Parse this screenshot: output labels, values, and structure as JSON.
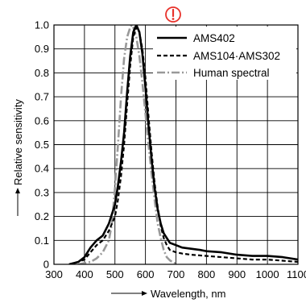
{
  "chart_data": {
    "type": "line",
    "xlabel": "Wavelength, nm",
    "ylabel": "Relative sensitivity",
    "xlim": [
      300,
      1100
    ],
    "ylim": [
      0,
      1.0
    ],
    "x_ticks": [
      "300",
      "400",
      "500",
      "600",
      "700",
      "800",
      "900",
      "1000",
      "1100"
    ],
    "y_ticks": [
      "0",
      "0.1",
      "0.2",
      "0.3",
      "0.4",
      "0.5",
      "0.6",
      "0.7",
      "0.8",
      "0.9",
      "1.0"
    ],
    "grid": true,
    "legend_position": "top-right",
    "warning_icon": "exclamation-circle-icon",
    "colors": {
      "warning": "#e8322b",
      "grid": "#000000",
      "human": "#999999"
    },
    "series": [
      {
        "name": "AMS402",
        "style": "solid",
        "color": "#000000",
        "points": [
          [
            350,
            0
          ],
          [
            380,
            0.01
          ],
          [
            400,
            0.03
          ],
          [
            420,
            0.07
          ],
          [
            440,
            0.1
          ],
          [
            460,
            0.12
          ],
          [
            480,
            0.17
          ],
          [
            500,
            0.25
          ],
          [
            510,
            0.33
          ],
          [
            520,
            0.43
          ],
          [
            530,
            0.55
          ],
          [
            540,
            0.72
          ],
          [
            550,
            0.87
          ],
          [
            560,
            0.97
          ],
          [
            570,
            1.0
          ],
          [
            580,
            0.97
          ],
          [
            590,
            0.88
          ],
          [
            600,
            0.74
          ],
          [
            610,
            0.58
          ],
          [
            620,
            0.44
          ],
          [
            630,
            0.32
          ],
          [
            640,
            0.23
          ],
          [
            650,
            0.17
          ],
          [
            660,
            0.13
          ],
          [
            670,
            0.11
          ],
          [
            680,
            0.09
          ],
          [
            700,
            0.08
          ],
          [
            720,
            0.07
          ],
          [
            750,
            0.065
          ],
          [
            780,
            0.06
          ],
          [
            800,
            0.055
          ],
          [
            850,
            0.05
          ],
          [
            900,
            0.04
          ],
          [
            950,
            0.035
          ],
          [
            1000,
            0.035
          ],
          [
            1050,
            0.03
          ],
          [
            1100,
            0.02
          ]
        ]
      },
      {
        "name": "AMS104·AMS302",
        "style": "dashed",
        "color": "#000000",
        "points": [
          [
            350,
            0
          ],
          [
            380,
            0.01
          ],
          [
            400,
            0.02
          ],
          [
            420,
            0.05
          ],
          [
            440,
            0.08
          ],
          [
            460,
            0.1
          ],
          [
            480,
            0.14
          ],
          [
            500,
            0.2
          ],
          [
            510,
            0.27
          ],
          [
            520,
            0.37
          ],
          [
            530,
            0.5
          ],
          [
            540,
            0.67
          ],
          [
            550,
            0.83
          ],
          [
            560,
            0.95
          ],
          [
            570,
            0.99
          ],
          [
            580,
            0.97
          ],
          [
            590,
            0.9
          ],
          [
            600,
            0.78
          ],
          [
            610,
            0.62
          ],
          [
            620,
            0.47
          ],
          [
            630,
            0.34
          ],
          [
            640,
            0.24
          ],
          [
            650,
            0.16
          ],
          [
            660,
            0.11
          ],
          [
            670,
            0.08
          ],
          [
            680,
            0.06
          ],
          [
            700,
            0.05
          ],
          [
            720,
            0.045
          ],
          [
            750,
            0.04
          ],
          [
            800,
            0.035
          ],
          [
            850,
            0.03
          ],
          [
            900,
            0.025
          ],
          [
            950,
            0.02
          ],
          [
            1000,
            0.02
          ],
          [
            1050,
            0.015
          ],
          [
            1100,
            0.01
          ]
        ]
      },
      {
        "name": "Human spectral",
        "style": "dash-dot",
        "color": "#999999",
        "points": [
          [
            380,
            0
          ],
          [
            400,
            0.005
          ],
          [
            420,
            0.01
          ],
          [
            440,
            0.025
          ],
          [
            460,
            0.05
          ],
          [
            480,
            0.1
          ],
          [
            490,
            0.17
          ],
          [
            500,
            0.32
          ],
          [
            510,
            0.5
          ],
          [
            520,
            0.7
          ],
          [
            530,
            0.86
          ],
          [
            540,
            0.95
          ],
          [
            550,
            0.99
          ],
          [
            555,
            1.0
          ],
          [
            560,
            0.99
          ],
          [
            570,
            0.95
          ],
          [
            580,
            0.87
          ],
          [
            590,
            0.76
          ],
          [
            600,
            0.63
          ],
          [
            610,
            0.5
          ],
          [
            620,
            0.38
          ],
          [
            630,
            0.27
          ],
          [
            640,
            0.17
          ],
          [
            650,
            0.11
          ],
          [
            660,
            0.06
          ],
          [
            670,
            0.03
          ],
          [
            680,
            0.017
          ],
          [
            690,
            0.008
          ],
          [
            700,
            0.004
          ]
        ]
      }
    ]
  }
}
